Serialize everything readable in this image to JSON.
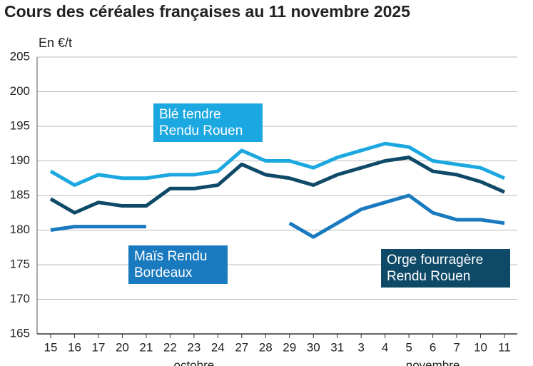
{
  "chart_data": {
    "type": "line",
    "title": "Cours des céréales françaises au 11 novembre 2025",
    "y_label": "En €/t",
    "categories": [
      "15",
      "16",
      "17",
      "20",
      "21",
      "22",
      "23",
      "24",
      "27",
      "28",
      "29",
      "30",
      "31",
      "3",
      "4",
      "5",
      "6",
      "7",
      "10",
      "11"
    ],
    "x_groups": [
      {
        "label": "octobre",
        "start": 0,
        "end": 12
      },
      {
        "label": "novembre",
        "start": 13,
        "end": 19
      }
    ],
    "series": [
      {
        "name": "Blé tendre\nRendu Rouen",
        "color": "#1ba8e0",
        "values": [
          188.5,
          186.5,
          188,
          187.5,
          187.5,
          188,
          188,
          188.5,
          191.5,
          190,
          190,
          189,
          190.5,
          191.5,
          192.5,
          192,
          190,
          189.5,
          189,
          187.5
        ]
      },
      {
        "name": "Maïs Rendu\nBordeaux",
        "color": "#1a7abf",
        "values": [
          180,
          180.5,
          180.5,
          180.5,
          180.5,
          null,
          null,
          null,
          null,
          null,
          181,
          179,
          181,
          183,
          184,
          185,
          182.5,
          181.5,
          181.5,
          181
        ]
      },
      {
        "name": "Orge fourragère\nRendu Rouen",
        "color": "#0e4a68",
        "values": [
          184.5,
          182.5,
          184,
          183.5,
          183.5,
          186,
          186,
          186.5,
          189.5,
          188,
          187.5,
          186.5,
          188,
          189,
          190,
          190.5,
          188.5,
          188,
          187,
          185.5
        ]
      }
    ],
    "ylim": [
      165,
      205
    ],
    "yticks": [
      165,
      170,
      175,
      180,
      185,
      190,
      195,
      200,
      205
    ],
    "grid": true
  }
}
